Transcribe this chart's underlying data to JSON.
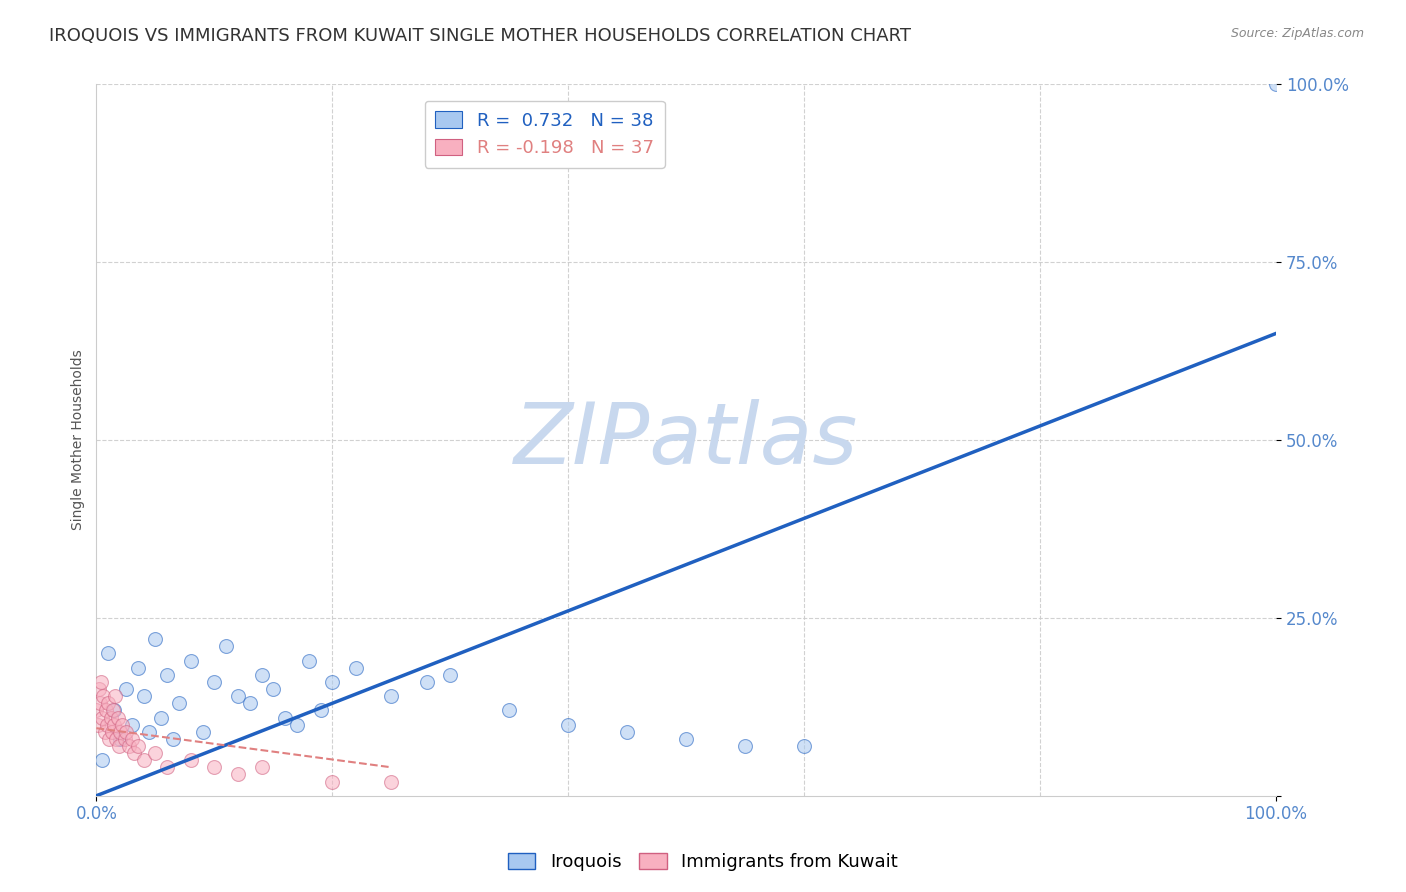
{
  "title": "IROQUOIS VS IMMIGRANTS FROM KUWAIT SINGLE MOTHER HOUSEHOLDS CORRELATION CHART",
  "source": "Source: ZipAtlas.com",
  "ylabel": "Single Mother Households",
  "watermark": "ZIPatlas",
  "legend_blue_r": "R =  0.732",
  "legend_blue_n": "N = 38",
  "legend_pink_r": "R = -0.198",
  "legend_pink_n": "N = 37",
  "blue_color": "#A8C8F0",
  "blue_line_color": "#2060C0",
  "pink_color": "#F8B0C0",
  "pink_edge_color": "#D06080",
  "pink_line_color": "#E08080",
  "iroquois_x": [
    1.0,
    0.005,
    0.01,
    0.015,
    0.02,
    0.025,
    0.03,
    0.035,
    0.04,
    0.045,
    0.05,
    0.055,
    0.06,
    0.065,
    0.07,
    0.08,
    0.09,
    0.1,
    0.11,
    0.12,
    0.13,
    0.14,
    0.15,
    0.16,
    0.17,
    0.18,
    0.19,
    0.2,
    0.22,
    0.25,
    0.28,
    0.3,
    0.35,
    0.4,
    0.45,
    0.5,
    0.55,
    0.6
  ],
  "iroquois_y": [
    1.0,
    0.05,
    0.2,
    0.12,
    0.08,
    0.15,
    0.1,
    0.18,
    0.14,
    0.09,
    0.22,
    0.11,
    0.17,
    0.08,
    0.13,
    0.19,
    0.09,
    0.16,
    0.21,
    0.14,
    0.13,
    0.17,
    0.15,
    0.11,
    0.1,
    0.19,
    0.12,
    0.16,
    0.18,
    0.14,
    0.16,
    0.17,
    0.12,
    0.1,
    0.09,
    0.08,
    0.07,
    0.07
  ],
  "kuwait_x": [
    0.0,
    0.001,
    0.002,
    0.003,
    0.004,
    0.005,
    0.006,
    0.007,
    0.008,
    0.009,
    0.01,
    0.011,
    0.012,
    0.013,
    0.014,
    0.015,
    0.016,
    0.017,
    0.018,
    0.019,
    0.02,
    0.022,
    0.024,
    0.025,
    0.028,
    0.03,
    0.032,
    0.035,
    0.04,
    0.05,
    0.06,
    0.08,
    0.1,
    0.12,
    0.14,
    0.2,
    0.25
  ],
  "kuwait_y": [
    0.12,
    0.1,
    0.15,
    0.13,
    0.16,
    0.11,
    0.14,
    0.09,
    0.12,
    0.1,
    0.13,
    0.08,
    0.11,
    0.09,
    0.12,
    0.1,
    0.14,
    0.08,
    0.11,
    0.07,
    0.09,
    0.1,
    0.08,
    0.09,
    0.07,
    0.08,
    0.06,
    0.07,
    0.05,
    0.06,
    0.04,
    0.05,
    0.04,
    0.03,
    0.04,
    0.02,
    0.02
  ],
  "blue_line_x0": 0.0,
  "blue_line_y0": 0.0,
  "blue_line_x1": 1.0,
  "blue_line_y1": 0.65,
  "pink_line_x0": 0.0,
  "pink_line_y0": 0.095,
  "pink_line_x1": 0.25,
  "pink_line_y1": 0.04,
  "xlim": [
    0.0,
    1.0
  ],
  "ylim": [
    0.0,
    1.0
  ],
  "yticks": [
    0.0,
    0.25,
    0.5,
    0.75,
    1.0
  ],
  "ytick_labels": [
    "",
    "25.0%",
    "50.0%",
    "75.0%",
    "100.0%"
  ],
  "background_color": "#FFFFFF",
  "grid_color": "#CCCCCC",
  "title_color": "#333333",
  "watermark_color": "#C8D8EE",
  "marker_size": 100,
  "marker_alpha_blue": 0.55,
  "marker_alpha_pink": 0.55,
  "title_fontsize": 13,
  "axis_label_fontsize": 10,
  "tick_label_fontsize": 12,
  "legend_fontsize": 13
}
